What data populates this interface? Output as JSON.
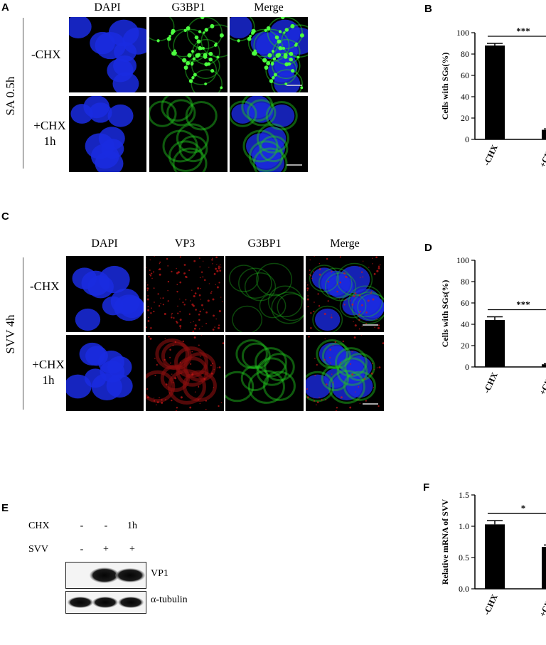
{
  "panels": {
    "A": {
      "letter": "A",
      "columns": [
        "DAPI",
        "G3BP1",
        "Merge"
      ],
      "group_label": "SA 0.5h",
      "rows": [
        "-CHX",
        "+CHX 1h"
      ],
      "row_lines": [
        [
          "-CHX"
        ],
        [
          "+CHX",
          "1h"
        ]
      ]
    },
    "B": {
      "letter": "B"
    },
    "C": {
      "letter": "C",
      "columns": [
        "DAPI",
        "VP3",
        "G3BP1",
        "Merge"
      ],
      "group_label": "SVV 4h",
      "row_lines": [
        [
          "-CHX"
        ],
        [
          "+CHX",
          "1h"
        ]
      ]
    },
    "D": {
      "letter": "D"
    },
    "E": {
      "letter": "E",
      "rows": [
        {
          "label": "CHX",
          "signs": [
            "-",
            "-",
            "1h"
          ]
        },
        {
          "label": "SVV",
          "signs": [
            "-",
            "+",
            "+"
          ]
        }
      ],
      "bands": [
        "VP1",
        "α-tubulin"
      ]
    },
    "F": {
      "letter": "F"
    }
  },
  "chart_data": [
    {
      "id": "B",
      "type": "bar",
      "categories": [
        "-CHX",
        "+CHX"
      ],
      "values": [
        88,
        9
      ],
      "errors": [
        2,
        0.8
      ],
      "ylabel": "Cells with SGs(%)",
      "yticks": [
        "0",
        "20",
        "40",
        "60",
        "80",
        "100"
      ],
      "ylim": [
        0,
        100
      ],
      "significance": "***"
    },
    {
      "id": "D",
      "type": "bar",
      "categories": [
        "-CHX",
        "+CHX"
      ],
      "values": [
        44,
        2.5
      ],
      "errors": [
        3,
        0.5
      ],
      "ylabel": "Cells with SGs(%)",
      "yticks": [
        "0",
        "20",
        "40",
        "60",
        "80",
        "100"
      ],
      "ylim": [
        0,
        100
      ],
      "significance": "***"
    },
    {
      "id": "F",
      "type": "bar",
      "categories": [
        "-CHX",
        "+CHX"
      ],
      "values": [
        1.03,
        0.67
      ],
      "errors": [
        0.06,
        0.03
      ],
      "ylabel": "Relative mRNA of SVV",
      "yticks": [
        "0.0",
        "0.5",
        "1.0",
        "1.5"
      ],
      "ylim": [
        0,
        1.5
      ],
      "significance": "*"
    }
  ],
  "colors": {
    "dapi": "#1a2be0",
    "gfp": "#22c81f",
    "red": "#d01818",
    "bar": "#000000"
  }
}
